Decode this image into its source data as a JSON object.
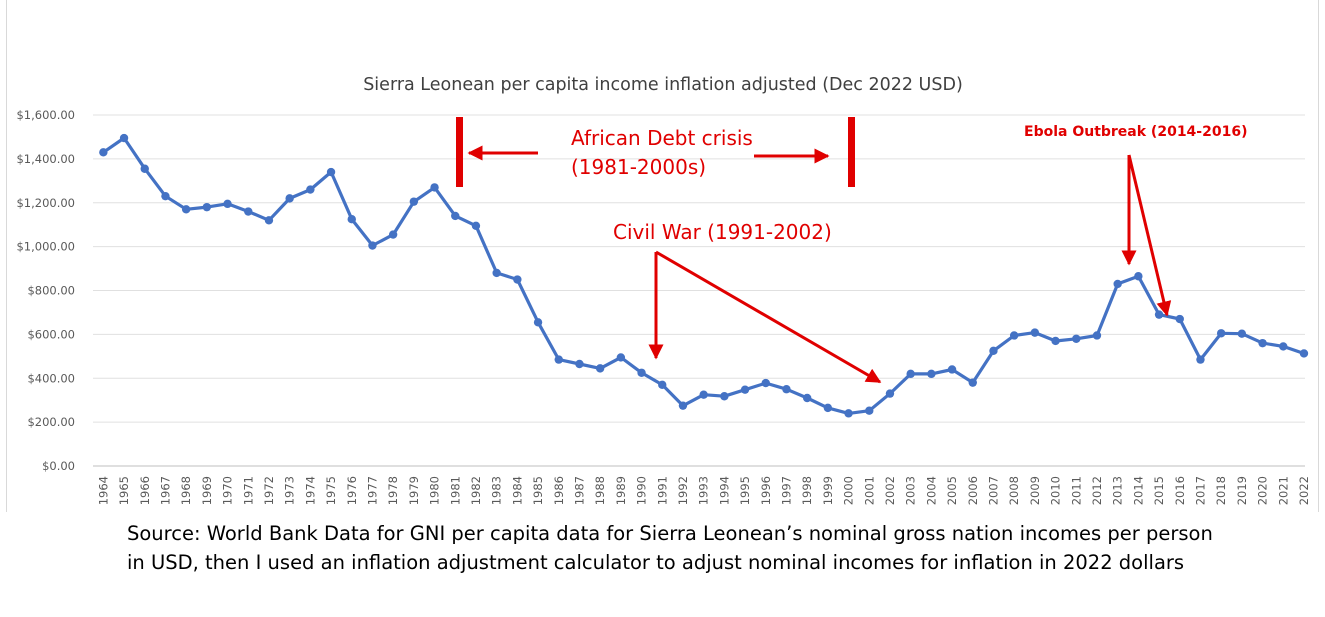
{
  "chart_data": {
    "type": "line",
    "title": "Sierra Leonean per capita income inflation adjusted (Dec 2022 USD)",
    "xlabel": "",
    "ylabel": "",
    "ylim": [
      0,
      1600
    ],
    "yticks": [
      "$0.00",
      "$200.00",
      "$400.00",
      "$600.00",
      "$800.00",
      "$1,000.00",
      "$1,200.00",
      "$1,400.00",
      "$1,600.00"
    ],
    "grid": true,
    "legend": "none",
    "categories": [
      "1964",
      "1965",
      "1966",
      "1967",
      "1968",
      "1969",
      "1970",
      "1971",
      "1972",
      "1973",
      "1974",
      "1975",
      "1976",
      "1977",
      "1978",
      "1979",
      "1980",
      "1981",
      "1982",
      "1983",
      "1984",
      "1985",
      "1986",
      "1987",
      "1988",
      "1989",
      "1990",
      "1991",
      "1992",
      "1993",
      "1994",
      "1995",
      "1996",
      "1997",
      "1998",
      "1999",
      "2000",
      "2001",
      "2002",
      "2003",
      "2004",
      "2005",
      "2006",
      "2007",
      "2008",
      "2009",
      "2010",
      "2011",
      "2012",
      "2013",
      "2014",
      "2015",
      "2016",
      "2017",
      "2018",
      "2019",
      "2020",
      "2021",
      "2022"
    ],
    "series": [
      {
        "color": "#4472c4",
        "values": [
          1430,
          1495,
          1355,
          1230,
          1170,
          1180,
          1195,
          1160,
          1120,
          1220,
          1260,
          1340,
          1125,
          1005,
          1055,
          1205,
          1270,
          1140,
          1095,
          880,
          850,
          655,
          485,
          465,
          445,
          495,
          425,
          370,
          275,
          325,
          318,
          348,
          378,
          350,
          310,
          265,
          240,
          252,
          330,
          420,
          420,
          440,
          380,
          525,
          595,
          608,
          570,
          580,
          595,
          830,
          865,
          690,
          670,
          485,
          605,
          603,
          560,
          545,
          513
        ]
      }
    ],
    "annotations": {
      "debt": {
        "line1": "African Debt crisis",
        "line2": "(1981-2000s)",
        "color": "#e00000"
      },
      "war": {
        "text": "Civil War (1991-2002)",
        "color": "#e00000"
      },
      "ebola": {
        "text": "Ebola Outbreak (2014-2016)",
        "color": "#e00000"
      }
    }
  },
  "source_note": {
    "line1": "Source: World Bank Data for GNI per capita data for Sierra Leonean’s nominal gross nation incomes per person",
    "line2": "in USD, then I used an inflation adjustment calculator to adjust nominal incomes for inflation in 2022 dollars"
  }
}
